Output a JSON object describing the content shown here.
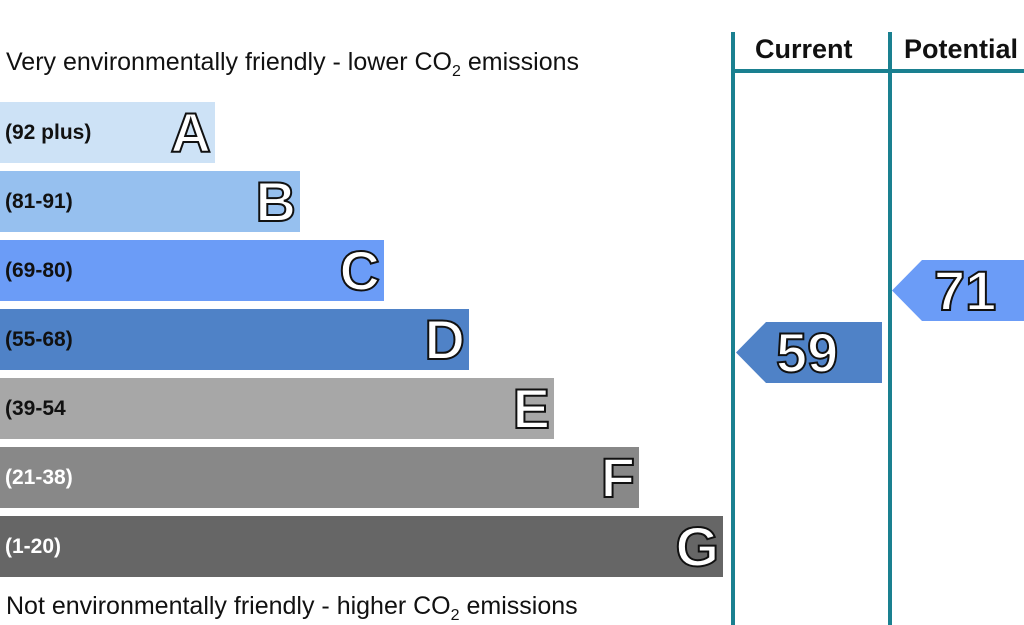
{
  "captions": {
    "top": {
      "prefix": "Very environmentally friendly - lower CO",
      "sub": "2",
      "suffix": " emissions"
    },
    "bottom": {
      "prefix": "Not environmentally friendly - higher CO",
      "sub": "2",
      "suffix": " emissions"
    }
  },
  "columns": {
    "current_label": "Current",
    "potential_label": "Potential"
  },
  "chart_data": {
    "type": "bar",
    "bands": [
      {
        "letter": "A",
        "range": "(92 plus)",
        "color": "#cde2f6"
      },
      {
        "letter": "B",
        "range": "(81-91)",
        "color": "#96c0ef"
      },
      {
        "letter": "C",
        "range": "(69-80)",
        "color": "#6b9cf7"
      },
      {
        "letter": "D",
        "range": "(55-68)",
        "color": "#4f82c7"
      },
      {
        "letter": "E",
        "range": "(39-54",
        "color": "#a7a7a7"
      },
      {
        "letter": "F",
        "range": "(21-38)",
        "color": "#888888"
      },
      {
        "letter": "G",
        "range": "(1-20)",
        "color": "#666666"
      }
    ],
    "ratings": {
      "current": {
        "value": "59",
        "band": "D",
        "color": "#4f82c7"
      },
      "potential": {
        "value": "71",
        "band": "C",
        "color": "#6b9cf7"
      }
    }
  }
}
